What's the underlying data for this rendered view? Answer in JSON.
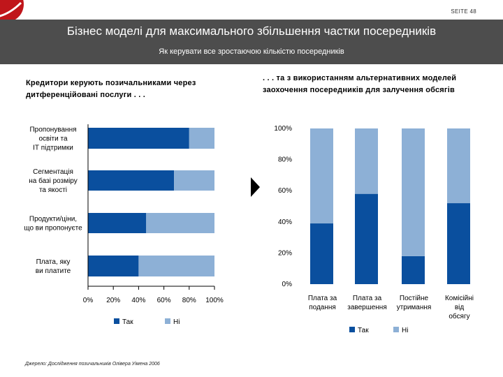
{
  "page": {
    "label": "SEITE 48",
    "title": "Бізнес моделі для максимального збільшення частки посередників",
    "subtitle": "Як керувати все зростаючою кількістю посередників",
    "left_heading": "Кредитори керують позичальниками через дитференційовані послуги . . .",
    "right_heading": ". . . та з використанням альтернативних моделей заохочення посередників для залучення обсягів",
    "source": "Джерело: Дослідження позичальників Олівера Уімена 2006"
  },
  "colors": {
    "yes": "#0a4f9e",
    "no": "#8db0d6",
    "banner": "#4d4d4d",
    "logo": "#c0161b"
  },
  "chart_data": [
    {
      "type": "bar",
      "orientation": "horizontal",
      "stacked": true,
      "categories": [
        [
          "Пропонування",
          "освіти та",
          "ІТ підтримки"
        ],
        [
          "Сегментація",
          "на базі розміру",
          "та якості"
        ],
        [
          "Продукти/ціни,",
          "що ви пропонуєте"
        ],
        [
          "Плата, яку",
          "ви платите"
        ]
      ],
      "series": [
        {
          "name": "Так",
          "values": [
            80,
            68,
            46,
            40
          ]
        },
        {
          "name": "Ні",
          "values": [
            20,
            32,
            54,
            60
          ]
        }
      ],
      "xlim": [
        0,
        100
      ],
      "xticks": [
        "0%",
        "20%",
        "40%",
        "60%",
        "80%",
        "100%"
      ],
      "legend": "bottom"
    },
    {
      "type": "bar",
      "orientation": "vertical",
      "stacked": true,
      "categories": [
        [
          "Плата за",
          "подання"
        ],
        [
          "Плата за",
          "завершення"
        ],
        [
          "Постійне",
          "утримання"
        ],
        [
          "Комісійні",
          "від",
          "обсягу"
        ]
      ],
      "series": [
        {
          "name": "Так",
          "values": [
            39,
            58,
            18,
            52
          ]
        },
        {
          "name": "Ні",
          "values": [
            61,
            42,
            82,
            48
          ]
        }
      ],
      "ylim": [
        0,
        100
      ],
      "yticks": [
        "0%",
        "20%",
        "40%",
        "60%",
        "80%",
        "100%"
      ],
      "legend": "bottom"
    }
  ]
}
